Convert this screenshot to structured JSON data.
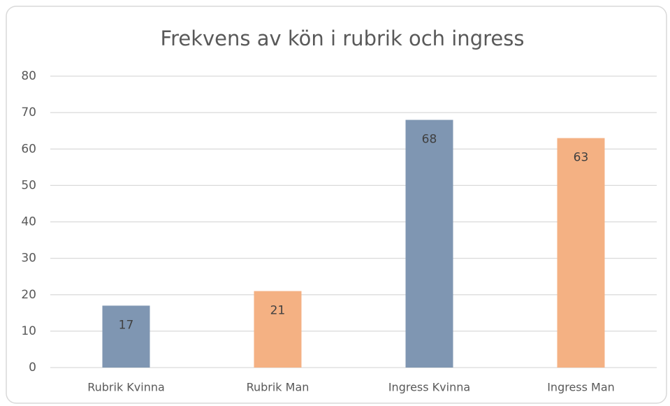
{
  "chart_data": {
    "type": "bar",
    "title": "Frekvens av kön i rubrik och ingress",
    "categories": [
      "Rubrik Kvinna",
      "Rubrik Man",
      "Ingress Kvinna",
      "Ingress Man"
    ],
    "values": [
      17,
      21,
      68,
      63
    ],
    "colors": [
      "#7f96b2",
      "#f4b183",
      "#7f96b2",
      "#f4b183"
    ],
    "ylim": [
      0,
      80
    ],
    "yticks": [
      0,
      10,
      20,
      30,
      40,
      50,
      60,
      70,
      80
    ],
    "grid": true
  }
}
